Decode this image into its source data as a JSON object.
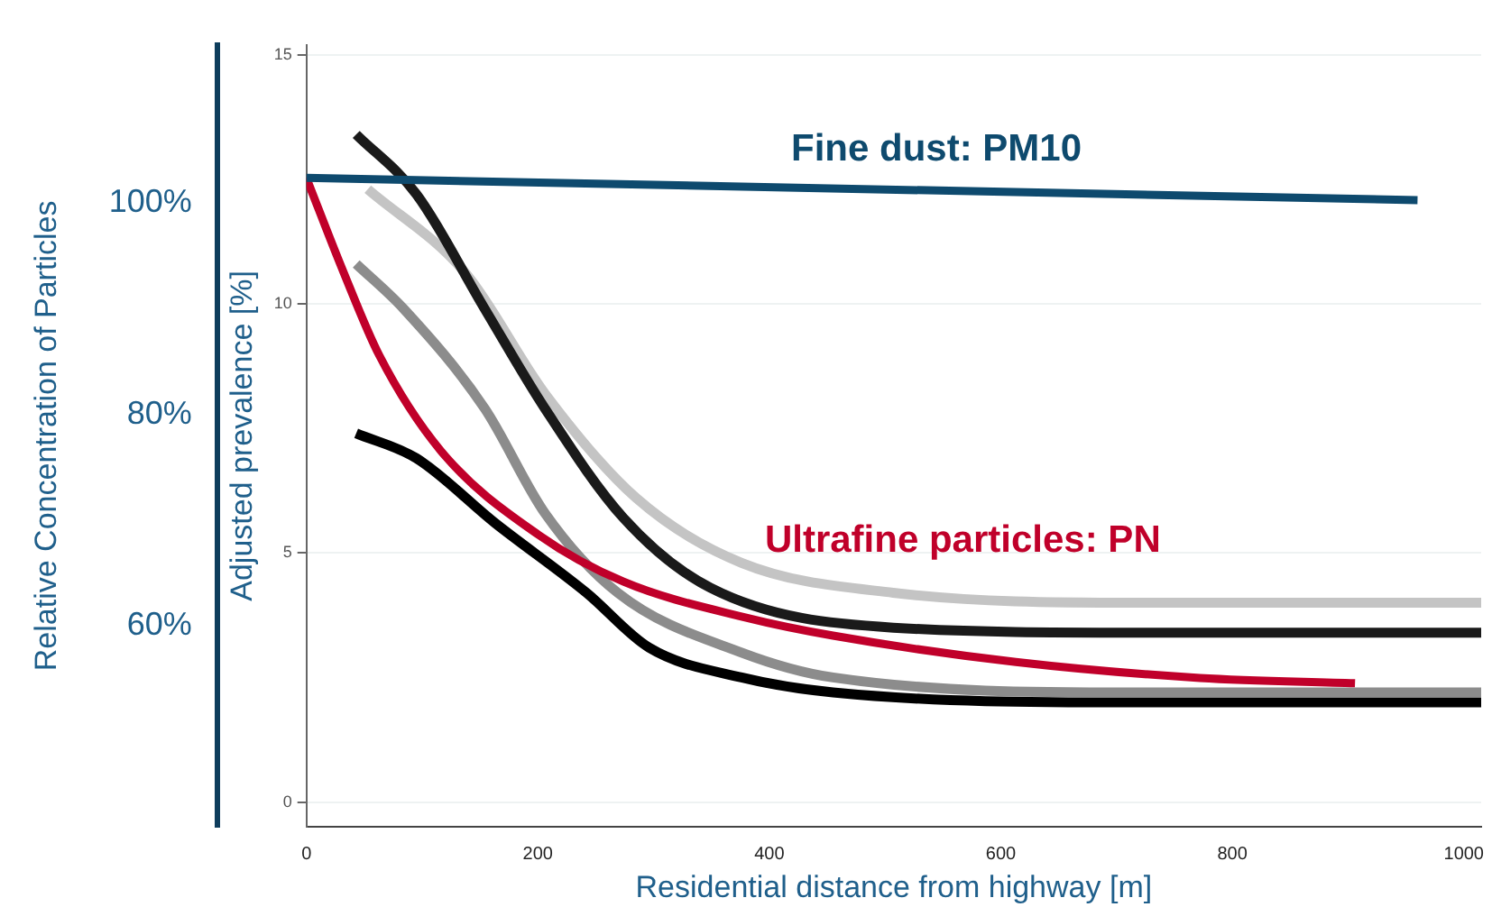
{
  "chart_data": {
    "type": "line",
    "xlabel": "Residential distance from highway [m]",
    "ylabel": "Adjusted prevalence [%]",
    "y2label": "Relative Concentration of Particles",
    "xlim": [
      0,
      1015
    ],
    "xticks": [
      0,
      200,
      400,
      600,
      800,
      1000
    ],
    "ylim": [
      -0.5,
      15.2
    ],
    "yticks": [
      0,
      5,
      10,
      15
    ],
    "y2lim": [
      41,
      115
    ],
    "y2ticks": [
      {
        "value": 60,
        "label": "60%"
      },
      {
        "value": 80,
        "label": "80%"
      },
      {
        "value": 100,
        "label": "100%"
      }
    ],
    "grid": "y",
    "legend": false,
    "marker": "none",
    "line_style": "solid",
    "series": [
      {
        "color": "#1a1a1a",
        "x": [
          43,
          95,
          154,
          206,
          274,
          349,
          507,
          718,
          1015
        ],
        "values": [
          13.4,
          12.2,
          9.9,
          7.9,
          5.7,
          4.3,
          3.5,
          3.4,
          3.4
        ]
      },
      {
        "color": "#c4c4c4",
        "x": [
          53,
          138,
          206,
          285,
          376,
          507,
          718,
          1015
        ],
        "values": [
          12.3,
          10.6,
          8.2,
          6.1,
          4.8,
          4.2,
          4.0,
          4.0
        ]
      },
      {
        "color": "#8c8c8c",
        "x": [
          43,
          84,
          154,
          206,
          269,
          376,
          455,
          718,
          1015
        ],
        "values": [
          10.8,
          9.9,
          7.9,
          5.8,
          4.2,
          3.0,
          2.5,
          2.2,
          2.2
        ]
      },
      {
        "color": "#000000",
        "x": [
          43,
          95,
          163,
          242,
          296,
          376,
          455,
          718,
          1015
        ],
        "values": [
          7.4,
          6.9,
          5.6,
          4.2,
          3.1,
          2.5,
          2.2,
          2.0,
          2.0
        ]
      },
      {
        "name": "Fine dust: PM10",
        "color": "#0e4a6e",
        "axis": "y2",
        "x": [
          0,
          960
        ],
        "values": [
          102.4,
          100.3
        ]
      },
      {
        "name": "Ultrafine particles: PN",
        "color": "#c0002a",
        "axis": "y2",
        "x": [
          0,
          32,
          63,
          116,
          201,
          274,
          380,
          455,
          613,
          772,
          906
        ],
        "values": [
          102.4,
          93.5,
          85.6,
          76.6,
          68.6,
          64.2,
          60.8,
          59.1,
          56.6,
          55.1,
          54.6
        ]
      }
    ]
  }
}
